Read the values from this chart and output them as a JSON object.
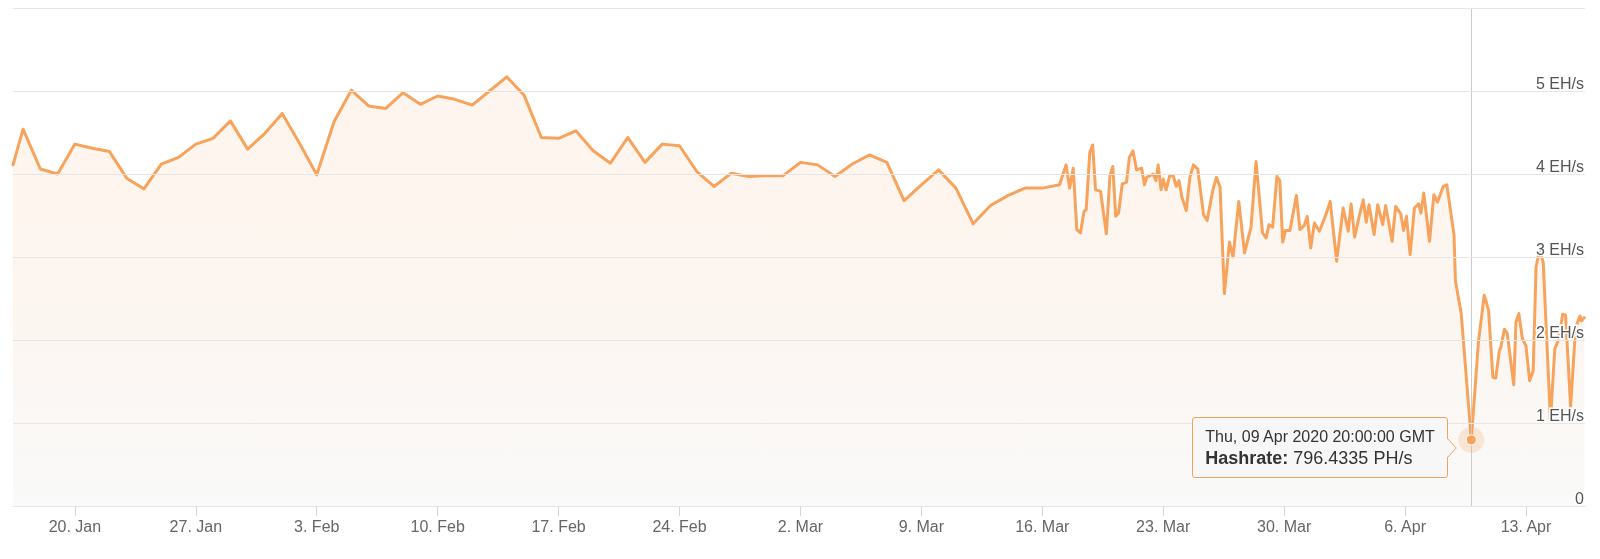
{
  "chart_data": {
    "type": "area",
    "color": "#f7a35c",
    "marker": "none",
    "line_style": "solid",
    "grid": "y",
    "x": [
      "2020-01-16T10:00",
      "2020-01-17",
      "2020-01-18",
      "2020-01-19",
      "2020-01-20",
      "2020-01-21",
      "2020-01-22",
      "2020-01-23",
      "2020-01-24",
      "2020-01-25",
      "2020-01-26",
      "2020-01-27",
      "2020-01-28",
      "2020-01-29",
      "2020-01-30",
      "2020-01-31",
      "2020-02-01",
      "2020-02-02",
      "2020-02-03",
      "2020-02-04",
      "2020-02-05",
      "2020-02-06",
      "2020-02-07",
      "2020-02-08",
      "2020-02-09",
      "2020-02-10",
      "2020-02-11",
      "2020-02-12",
      "2020-02-13",
      "2020-02-14",
      "2020-02-15",
      "2020-02-16",
      "2020-02-17",
      "2020-02-18",
      "2020-02-19",
      "2020-02-20",
      "2020-02-21",
      "2020-02-22",
      "2020-02-23",
      "2020-02-24",
      "2020-02-25",
      "2020-02-26",
      "2020-02-27",
      "2020-02-28",
      "2020-02-29",
      "2020-03-01",
      "2020-03-02",
      "2020-03-03",
      "2020-03-04",
      "2020-03-05",
      "2020-03-06",
      "2020-03-07",
      "2020-03-08",
      "2020-03-09",
      "2020-03-10",
      "2020-03-11",
      "2020-03-12",
      "2020-03-13",
      "2020-03-14",
      "2020-03-15",
      "2020-03-16",
      "2020-03-17",
      "2020-03-17T09:00",
      "2020-03-17T14:00",
      "2020-03-17T19:00",
      "2020-03-18T00:00",
      "2020-03-18T05:00",
      "2020-03-18T10:00",
      "2020-03-18T13:00",
      "2020-03-18T18:00",
      "2020-03-18T22:00",
      "2020-03-19T02:00",
      "2020-03-19T09:00",
      "2020-03-19T17:00",
      "2020-03-19T22:00",
      "2020-03-20T02:00",
      "2020-03-20T06:00",
      "2020-03-20T10:00",
      "2020-03-20T15:00",
      "2020-03-20T21:00",
      "2020-03-21T01:00",
      "2020-03-21T06:00",
      "2020-03-21T11:00",
      "2020-03-21T18:00",
      "2020-03-21T22:00",
      "2020-03-22T01:00",
      "2020-03-22T10:00",
      "2020-03-22T14:00",
      "2020-03-22T17:00",
      "2020-03-22T21:00",
      "2020-03-23T00:00",
      "2020-03-23T04:00",
      "2020-03-23T09:00",
      "2020-03-23T14:00",
      "2020-03-23T18:00",
      "2020-03-23T22:00",
      "2020-03-24T02:00",
      "2020-03-24T08:00",
      "2020-03-24T13:00",
      "2020-03-24T18:00",
      "2020-03-25T00:00",
      "2020-03-25T08:00",
      "2020-03-25T13:00",
      "2020-03-25T21:00",
      "2020-03-26T02:00",
      "2020-03-26T07:00",
      "2020-03-26T13:00",
      "2020-03-26T20:00",
      "2020-03-27T01:00",
      "2020-03-27T09:00",
      "2020-03-27T17:00",
      "2020-03-28T02:00",
      "2020-03-28T09:00",
      "2020-03-28T18:00",
      "2020-03-28T23:00",
      "2020-03-29T03:00",
      "2020-03-29T08:00",
      "2020-03-29T14:00",
      "2020-03-29T18:00",
      "2020-03-29T22:00",
      "2020-03-30T02:00",
      "2020-03-30T08:00",
      "2020-03-30T17:00",
      "2020-03-30T22:00",
      "2020-03-31T04:00",
      "2020-03-31T08:00",
      "2020-03-31T13:00",
      "2020-03-31T18:00",
      "2020-04-01T01:00",
      "2020-04-01T10:00",
      "2020-04-01T16:00",
      "2020-04-02T01:00",
      "2020-04-02T10:00",
      "2020-04-02T17:00",
      "2020-04-02T21:00",
      "2020-04-03T02:00",
      "2020-04-03T08:00",
      "2020-04-03T14:00",
      "2020-04-03T18:00",
      "2020-04-03T22:00",
      "2020-04-04T05:00",
      "2020-04-04T10:00",
      "2020-04-04T17:00",
      "2020-04-04T21:00",
      "2020-04-05T06:00",
      "2020-04-05T11:00",
      "2020-04-05T18:00",
      "2020-04-05T22:00",
      "2020-04-06T02:00",
      "2020-04-06T07:00",
      "2020-04-06T13:00",
      "2020-04-06T19:00",
      "2020-04-06T22:00",
      "2020-04-07T02:00",
      "2020-04-07T10:00",
      "2020-04-07T16:00",
      "2020-04-07T21:00",
      "2020-04-08T05:00",
      "2020-04-08T10:00",
      "2020-04-08T20:00",
      "2020-04-08T22:00",
      "2020-04-09T06:00",
      "2020-04-09T20:00",
      "2020-04-10T06:00",
      "2020-04-10T14:00",
      "2020-04-10T20:00",
      "2020-04-11T02:00",
      "2020-04-11T06:00",
      "2020-04-11T11:00",
      "2020-04-11T13:00",
      "2020-04-11T18:00",
      "2020-04-11T22:00",
      "2020-04-12T07:00",
      "2020-04-12T10:00",
      "2020-04-12T14:00",
      "2020-04-12T19:00",
      "2020-04-13T00:00",
      "2020-04-13T05:00",
      "2020-04-13T10:00",
      "2020-04-13T14:00",
      "2020-04-13T19:00",
      "2020-04-14T00:00",
      "2020-04-14T10:00",
      "2020-04-14T16:00",
      "2020-04-14T21:00",
      "2020-04-15T03:00",
      "2020-04-15T07:00",
      "2020-04-15T14:00",
      "2020-04-15T21:00",
      "2020-04-16T03:00",
      "2020-04-16T05:00",
      "2020-04-16T09:00"
    ],
    "values": [
      4.11,
      4.54,
      4.06,
      4.0,
      4.36,
      4.31,
      4.27,
      3.95,
      3.82,
      4.12,
      4.2,
      4.36,
      4.43,
      4.64,
      4.3,
      4.49,
      4.73,
      4.37,
      3.99,
      4.63,
      5.01,
      4.82,
      4.79,
      4.98,
      4.84,
      4.94,
      4.9,
      4.83,
      5.0,
      5.17,
      4.95,
      4.44,
      4.43,
      4.52,
      4.28,
      4.13,
      4.44,
      4.14,
      4.36,
      4.34,
      4.03,
      3.85,
      4.01,
      3.97,
      3.98,
      3.98,
      4.14,
      4.11,
      3.97,
      4.12,
      4.23,
      4.14,
      3.68,
      3.87,
      4.05,
      3.83,
      3.4,
      3.62,
      3.74,
      3.83,
      3.83,
      3.87,
      4.11,
      3.83,
      4.07,
      3.33,
      3.29,
      3.55,
      3.57,
      4.26,
      4.35,
      3.81,
      3.79,
      3.28,
      3.98,
      4.09,
      3.49,
      3.53,
      3.88,
      3.9,
      4.2,
      4.28,
      4.05,
      4.07,
      3.87,
      3.96,
      4.0,
      3.92,
      4.11,
      3.81,
      3.94,
      3.81,
      3.98,
      3.98,
      3.85,
      3.92,
      3.72,
      3.56,
      3.96,
      4.11,
      4.06,
      3.51,
      3.44,
      3.81,
      3.96,
      3.84,
      2.56,
      3.18,
      3.0,
      3.67,
      3.05,
      3.36,
      4.15,
      3.29,
      3.23,
      3.39,
      3.36,
      3.97,
      3.92,
      3.18,
      3.32,
      3.32,
      3.74,
      3.33,
      3.38,
      3.49,
      3.11,
      3.41,
      3.31,
      3.51,
      3.67,
      2.95,
      3.59,
      3.31,
      3.64,
      3.24,
      3.48,
      3.69,
      3.42,
      3.63,
      3.27,
      3.63,
      3.39,
      3.62,
      3.19,
      3.61,
      3.52,
      3.32,
      3.49,
      3.03,
      3.59,
      3.64,
      3.53,
      3.77,
      3.19,
      3.75,
      3.66,
      3.85,
      3.87,
      3.27,
      2.71,
      2.32,
      0.7964335,
      1.98,
      2.54,
      2.36,
      1.55,
      1.54,
      1.87,
      1.91,
      2.13,
      2.08,
      1.46,
      2.21,
      2.32,
      2.02,
      1.93,
      1.51,
      1.63,
      2.88,
      3.09,
      2.93,
      1.03,
      1.89,
      2.0,
      2.31,
      2.3,
      1.2,
      2.15,
      2.29,
      2.23,
      2.27
    ],
    "xlim": [
      "2020-01-16T10:00",
      "2020-04-16T10:00"
    ],
    "xticks": [
      {
        "value": "2020-01-20",
        "label": "20. Jan"
      },
      {
        "value": "2020-01-27",
        "label": "27. Jan"
      },
      {
        "value": "2020-02-03",
        "label": "3. Feb"
      },
      {
        "value": "2020-02-10",
        "label": "10. Feb"
      },
      {
        "value": "2020-02-17",
        "label": "17. Feb"
      },
      {
        "value": "2020-02-24",
        "label": "24. Feb"
      },
      {
        "value": "2020-03-02",
        "label": "2. Mar"
      },
      {
        "value": "2020-03-09",
        "label": "9. Mar"
      },
      {
        "value": "2020-03-16",
        "label": "16. Mar"
      },
      {
        "value": "2020-03-23",
        "label": "23. Mar"
      },
      {
        "value": "2020-03-30",
        "label": "30. Mar"
      },
      {
        "value": "2020-04-06",
        "label": "6. Apr"
      },
      {
        "value": "2020-04-13",
        "label": "13. Apr"
      }
    ],
    "ylim": [
      0,
      6
    ],
    "yticks": [
      0,
      {
        "value": 1,
        "label": "1 EH/s"
      },
      {
        "value": 2,
        "label": "2 EH/s"
      },
      {
        "value": 3,
        "label": "3 EH/s"
      },
      {
        "value": 4,
        "label": "4 EH/s"
      },
      {
        "value": 5,
        "label": "5 EH/s"
      },
      {
        "value": 6,
        "label": null
      }
    ],
    "ref_lines": [
      {
        "axis": "x",
        "value": "2020-04-09T20:00",
        "color": "#cccccc"
      }
    ],
    "annotations": [
      {
        "text": "Thu, 09 Apr 2020 20:00:00 GMT\nHashrate: 796.4335 PH/s",
        "x": "2020-04-09T20:00",
        "y": 0.7964335
      }
    ]
  }
}
